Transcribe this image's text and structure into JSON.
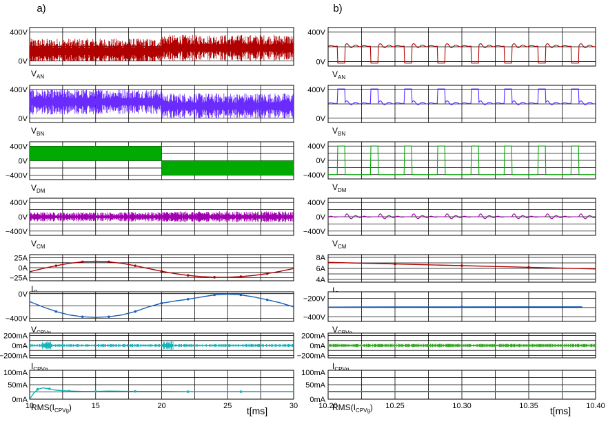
{
  "chart_data": [
    {
      "type": "line",
      "panel_label": "a)",
      "xlabel": "t[ms]",
      "x_ticks": [
        "10",
        "15",
        "20",
        "25",
        "30"
      ],
      "xlim": [
        10,
        30
      ],
      "plots": [
        {
          "id": "a-van",
          "label": "V",
          "label_sub": "AN",
          "y_ticks": [
            "400V",
            "0V"
          ],
          "ylim": [
            -60,
            460
          ],
          "series": [
            {
              "color": "#b00000",
              "kind": "noise",
              "segments": [
                [
                  10,
                  20,
                  0,
                  400,
                  130
                ],
                [
                  20,
                  30,
                  0,
                  400,
                  180
                ]
              ]
            }
          ]
        },
        {
          "id": "a-vbn",
          "label": "V",
          "label_sub": "BN",
          "y_ticks": [
            "400V",
            "0V"
          ],
          "ylim": [
            -60,
            460
          ],
          "series": [
            {
              "color": "#6a2bff",
              "kind": "noise",
              "segments": [
                [
                  10,
                  20,
                  0,
                  400,
                  230
                ],
                [
                  20,
                  30,
                  0,
                  400,
                  170
                ]
              ]
            }
          ]
        },
        {
          "id": "a-vdm",
          "label": "V",
          "label_sub": "DM",
          "y_ticks": [
            "400V",
            "0V",
            "-400V"
          ],
          "ylim": [
            -520,
            520
          ],
          "series": [
            {
              "color": "#00aa00",
              "kind": "block",
              "segments": [
                [
                  10,
                  20,
                  0,
                  400
                ],
                [
                  20,
                  30,
                  -400,
                  0
                ]
              ]
            }
          ]
        },
        {
          "id": "a-vcm",
          "label": "V",
          "label_sub": "CM",
          "y_ticks": [
            "400V",
            "0V",
            "-400V"
          ],
          "ylim": [
            -520,
            520
          ],
          "series": [
            {
              "color": "#a000b0",
              "kind": "noise",
              "segments": [
                [
                  10,
                  20,
                  -130,
                  130,
                  0
                ],
                [
                  20,
                  30,
                  -150,
                  150,
                  0
                ]
              ]
            }
          ]
        },
        {
          "id": "a-io",
          "label": "I",
          "label_sub": "O",
          "y_ticks": [
            "25A",
            "0A",
            "-25A"
          ],
          "ylim": [
            -33,
            33
          ],
          "series": [
            {
              "color": "#b00000",
              "kind": "line",
              "x": [
                10,
                11,
                12,
                13,
                14,
                15,
                16,
                17,
                18,
                19,
                20,
                21,
                22,
                23,
                24,
                25,
                26,
                27,
                28,
                29,
                30
              ],
              "y": [
                -10,
                -2,
                5,
                11,
                15,
                16.5,
                15,
                11,
                5,
                -2,
                -9,
                -15,
                -19.5,
                -22.5,
                -24,
                -24,
                -22.5,
                -19.5,
                -15,
                -9,
                -2
              ]
            }
          ]
        },
        {
          "id": "a-vcpvg",
          "label": "V",
          "label_sub": "CPVg",
          "y_ticks": [
            "0V",
            "-400V"
          ],
          "ylim": [
            -450,
            30
          ],
          "series": [
            {
              "color": "#1a5fb4",
              "kind": "line",
              "x": [
                10,
                11,
                12,
                13,
                14,
                15,
                16,
                17,
                18,
                19,
                20,
                21,
                22,
                23,
                24,
                25,
                26,
                27,
                28,
                29,
                30
              ],
              "y": [
                -130,
                -215,
                -290,
                -345,
                -375,
                -385,
                -375,
                -345,
                -290,
                -215,
                -155,
                -120,
                -90,
                -55,
                -20,
                -8,
                -20,
                -55,
                -100,
                -150,
                -215
              ]
            }
          ]
        },
        {
          "id": "a-icpvg",
          "label": "I",
          "label_sub": "CPVg",
          "y_ticks": [
            "200mA",
            "0mA",
            "-200mA"
          ],
          "ylim": [
            -250,
            250
          ],
          "series": [
            {
              "color": "#17b2b8",
              "kind": "noise",
              "segments": [
                [
                  10,
                  10.9,
                  -30,
                  30,
                  0
                ],
                [
                  10.9,
                  11.6,
                  -80,
                  80,
                  0
                ],
                [
                  11.6,
                  20.1,
                  -30,
                  30,
                  0
                ],
                [
                  20.1,
                  20.9,
                  -90,
                  90,
                  0
                ],
                [
                  20.9,
                  30,
                  -30,
                  30,
                  0
                ]
              ]
            }
          ]
        },
        {
          "id": "a-rms",
          "label": "RMS(I",
          "label_sub": "CPVg",
          "label_tail": ")",
          "y_ticks": [
            "100mA",
            "50mA",
            "0mA"
          ],
          "ylim": [
            0,
            100
          ],
          "series": [
            {
              "color": "#17b2b8",
              "kind": "line",
              "x": [
                10,
                10.3,
                10.6,
                11,
                11.5,
                12,
                13,
                14,
                15,
                16,
                18,
                20,
                22,
                24,
                26,
                28,
                30
              ],
              "y": [
                0,
                20,
                34,
                39,
                36,
                31,
                28,
                27,
                27,
                28,
                27,
                27,
                26,
                26,
                26,
                26,
                26
              ]
            }
          ]
        }
      ]
    },
    {
      "type": "line",
      "panel_label": "b)",
      "xlabel": "t[ms]",
      "x_ticks": [
        "10.20",
        "10.25",
        "10.30",
        "10.35",
        "10.40"
      ],
      "xlim": [
        10.2,
        10.4
      ],
      "plots": [
        {
          "id": "b-van",
          "label": "V",
          "label_sub": "AN",
          "y_ticks": [
            "400V",
            "0V"
          ],
          "ylim": [
            -60,
            460
          ],
          "series": [
            {
              "color": "#b00000",
              "kind": "pulse",
              "base": 210,
              "pulse": -20,
              "period": 0.025,
              "start": 10.207,
              "width": 0.0055,
              "ring": 40
            }
          ]
        },
        {
          "id": "b-vbn",
          "label": "V",
          "label_sub": "BN",
          "y_ticks": [
            "400V",
            "0V"
          ],
          "ylim": [
            -60,
            460
          ],
          "series": [
            {
              "color": "#5a2bff",
              "kind": "pulse",
              "base": 210,
              "pulse": 410,
              "period": 0.025,
              "start": 10.207,
              "width": 0.0055,
              "ring": 40
            }
          ]
        },
        {
          "id": "b-vdm",
          "label": "V",
          "label_sub": "DM",
          "y_ticks": [
            "400V",
            "0V",
            "-400V"
          ],
          "ylim": [
            -520,
            520
          ],
          "series": [
            {
              "color": "#00aa00",
              "kind": "pulse",
              "base": -400,
              "pulse": 400,
              "period": 0.025,
              "start": 10.207,
              "width": 0.0055,
              "ring": 0
            }
          ]
        },
        {
          "id": "b-vcm",
          "label": "V",
          "label_sub": "CM",
          "y_ticks": [
            "400V",
            "0V",
            "-400V"
          ],
          "ylim": [
            -520,
            520
          ],
          "series": [
            {
              "color": "#a000b0",
              "kind": "pulse",
              "base": 0,
              "pulse": 0,
              "period": 0.025,
              "start": 10.207,
              "width": 0.0055,
              "ring": 100
            }
          ]
        },
        {
          "id": "b-io",
          "label": "I",
          "label_sub": "O",
          "y_ticks": [
            "8A",
            "6A",
            "4A"
          ],
          "ylim": [
            3.5,
            8.5
          ],
          "series": [
            {
              "color": "#b00000",
              "kind": "line",
              "x": [
                10.2,
                10.225,
                10.25,
                10.275,
                10.3,
                10.325,
                10.35,
                10.375,
                10.4
              ],
              "y": [
                7.1,
                6.95,
                6.8,
                6.65,
                6.5,
                6.35,
                6.2,
                6.05,
                5.9
              ]
            }
          ]
        },
        {
          "id": "b-vcpvg",
          "label": "V",
          "label_sub": "CPVg",
          "y_ticks": [
            "-200V",
            "-400V"
          ],
          "ylim": [
            -450,
            -130
          ],
          "series": [
            {
              "color": "#1a5fb4",
              "kind": "line",
              "x": [
                10.2,
                10.25,
                10.3,
                10.35,
                10.39
              ],
              "y": [
                -295,
                -294,
                -293,
                -292,
                -292
              ]
            }
          ]
        },
        {
          "id": "b-icpvg",
          "label": "I",
          "label_sub": "CPVg",
          "y_ticks": [
            "200mA",
            "0mA",
            "-200mA"
          ],
          "ylim": [
            -250,
            250
          ],
          "series": [
            {
              "color": "#33aa22",
              "kind": "noise",
              "segments": [
                [
                  10.2,
                  10.4,
                  -35,
                  35,
                  0
                ]
              ]
            }
          ]
        },
        {
          "id": "b-rms",
          "label": "RMS(I",
          "label_sub": "CPVg",
          "label_tail": ")",
          "y_ticks": [
            "100mA",
            "50mA",
            "0mA"
          ],
          "ylim": [
            0,
            100
          ],
          "series": [
            {
              "color": "#17b2b8",
              "kind": "line",
              "x": [
                10.2,
                10.4
              ],
              "y": [
                27,
                27
              ]
            }
          ]
        }
      ]
    }
  ]
}
